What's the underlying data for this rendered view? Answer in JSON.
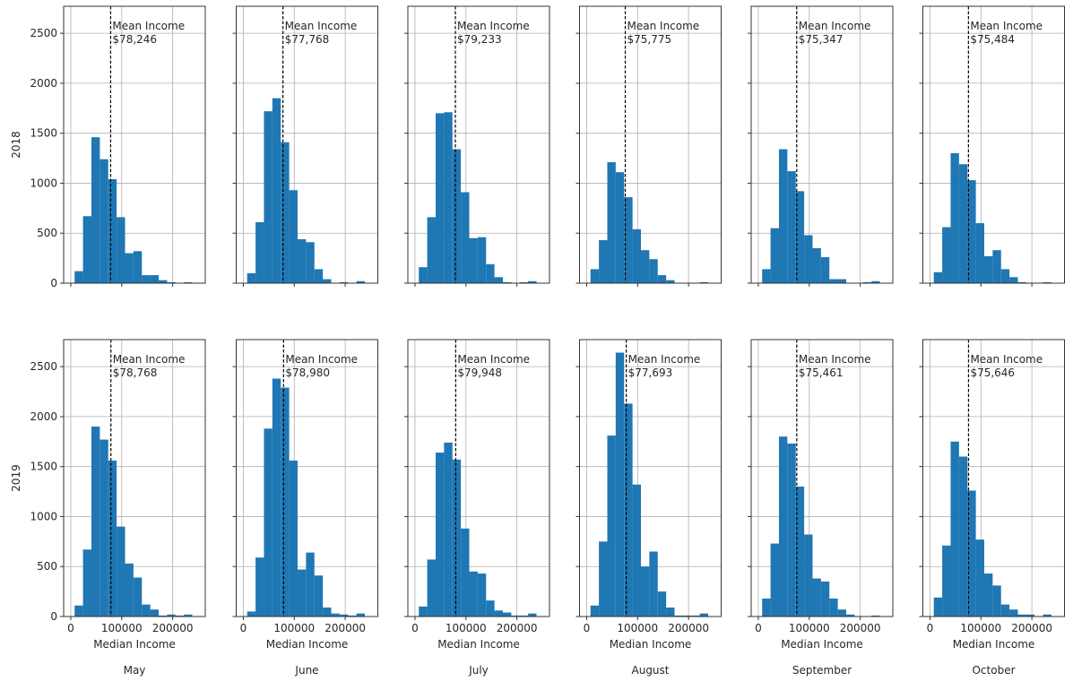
{
  "chart_data": {
    "type": "bar",
    "subtype": "histogram-grid",
    "rows": [
      "2018",
      "2019"
    ],
    "columns": [
      "May",
      "June",
      "July",
      "August",
      "September",
      "October"
    ],
    "xlabel": "Median Income",
    "ylabel_by_row": [
      "2018",
      "2019"
    ],
    "x_ticks": [
      0,
      100000,
      200000
    ],
    "x_tick_labels": [
      "0",
      "100000",
      "200000"
    ],
    "y_ticks": [
      0,
      500,
      1000,
      1500,
      2000,
      2500
    ],
    "y_tick_labels": [
      "0",
      "500",
      "1000",
      "1500",
      "2000",
      "2500"
    ],
    "xlim": [
      -14000,
      264000
    ],
    "ylim": [
      0,
      2770
    ],
    "grid": true,
    "bar_color": "#1f77b4",
    "mean_line_style": "black dashed vertical",
    "annotation_label": "Mean Income",
    "bin_start": 7500,
    "bin_width": 16500,
    "panels": [
      {
        "row": "2018",
        "month": "May",
        "mean": 78246,
        "mean_text": "$78,246",
        "counts": [
          120,
          670,
          1460,
          1240,
          1040,
          660,
          300,
          320,
          80,
          80,
          30,
          10,
          0,
          10
        ]
      },
      {
        "row": "2018",
        "month": "June",
        "mean": 77768,
        "mean_text": "$77,768",
        "counts": [
          100,
          610,
          1720,
          1850,
          1410,
          930,
          440,
          410,
          140,
          40,
          0,
          10,
          0,
          20
        ]
      },
      {
        "row": "2018",
        "month": "July",
        "mean": 79233,
        "mean_text": "$79,233",
        "counts": [
          160,
          660,
          1700,
          1710,
          1340,
          910,
          450,
          460,
          190,
          60,
          10,
          0,
          10,
          20
        ]
      },
      {
        "row": "2018",
        "month": "August",
        "mean": 75775,
        "mean_text": "$75,775",
        "counts": [
          140,
          430,
          1210,
          1110,
          860,
          540,
          330,
          240,
          80,
          30,
          0,
          0,
          0,
          10
        ]
      },
      {
        "row": "2018",
        "month": "September",
        "mean": 75347,
        "mean_text": "$75,347",
        "counts": [
          140,
          550,
          1340,
          1120,
          920,
          480,
          350,
          260,
          40,
          40,
          0,
          0,
          10,
          20
        ]
      },
      {
        "row": "2018",
        "month": "October",
        "mean": 75484,
        "mean_text": "$75,484",
        "counts": [
          110,
          560,
          1300,
          1190,
          1030,
          600,
          270,
          330,
          140,
          60,
          10,
          0,
          0,
          10
        ]
      },
      {
        "row": "2019",
        "month": "May",
        "mean": 78768,
        "mean_text": "$78,768",
        "counts": [
          110,
          670,
          1900,
          1770,
          1560,
          900,
          530,
          390,
          120,
          70,
          10,
          20,
          10,
          20
        ]
      },
      {
        "row": "2019",
        "month": "June",
        "mean": 78980,
        "mean_text": "$78,980",
        "counts": [
          50,
          590,
          1880,
          2380,
          2290,
          1560,
          470,
          640,
          410,
          90,
          30,
          20,
          10,
          30
        ]
      },
      {
        "row": "2019",
        "month": "July",
        "mean": 79948,
        "mean_text": "$79,948",
        "counts": [
          100,
          570,
          1640,
          1740,
          1570,
          880,
          450,
          430,
          160,
          60,
          40,
          10,
          10,
          30
        ]
      },
      {
        "row": "2019",
        "month": "August",
        "mean": 77693,
        "mean_text": "$77,693",
        "counts": [
          110,
          750,
          1810,
          2640,
          2130,
          1320,
          500,
          650,
          250,
          90,
          10,
          10,
          10,
          30
        ]
      },
      {
        "row": "2019",
        "month": "September",
        "mean": 75461,
        "mean_text": "$75,461",
        "counts": [
          180,
          730,
          1800,
          1730,
          1300,
          820,
          380,
          350,
          180,
          70,
          20,
          0,
          0,
          10
        ]
      },
      {
        "row": "2019",
        "month": "October",
        "mean": 75646,
        "mean_text": "$75,646",
        "counts": [
          190,
          710,
          1750,
          1600,
          1260,
          770,
          430,
          310,
          120,
          70,
          20,
          20,
          0,
          20
        ]
      }
    ]
  }
}
